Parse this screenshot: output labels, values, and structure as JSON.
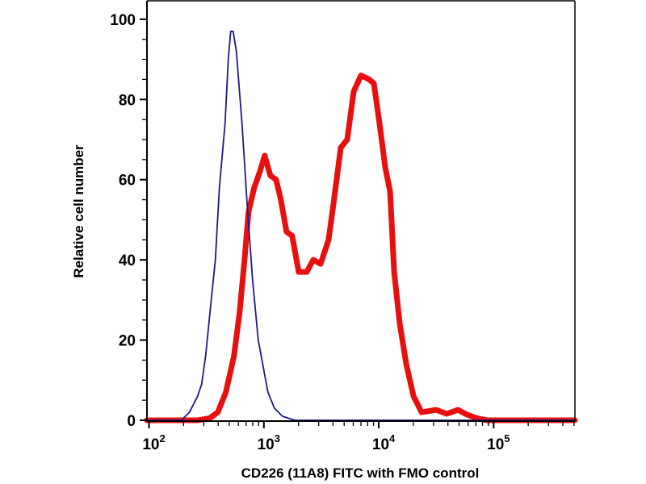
{
  "chart_data": {
    "type": "line",
    "title": "",
    "xlabel": "CD226 (11A8) FITC with FMO control",
    "ylabel": "Relative cell number",
    "xscale": "log",
    "xlim": [
      96,
      510000
    ],
    "ylim": [
      0,
      104.6
    ],
    "grid": false,
    "x_ticks": [
      {
        "value": 100,
        "base": "10",
        "exp": "2"
      },
      {
        "value": 1000,
        "base": "10",
        "exp": "3"
      },
      {
        "value": 10000,
        "base": "10",
        "exp": "4"
      },
      {
        "value": 100000,
        "base": "10",
        "exp": "5"
      }
    ],
    "y_ticks": [
      {
        "value": 0,
        "label": "0"
      },
      {
        "value": 20,
        "label": "20"
      },
      {
        "value": 40,
        "label": "40"
      },
      {
        "value": 60,
        "label": "60"
      },
      {
        "value": 80,
        "label": "80"
      },
      {
        "value": 100,
        "label": "100"
      }
    ],
    "series": [
      {
        "name": "FMO control",
        "color": "#1a1a8c",
        "x": [
          96,
          191,
          225,
          265,
          287,
          311,
          348,
          378,
          410,
          459,
          490,
          514,
          540,
          576,
          645,
          711,
          797,
          893,
          1084,
          1236,
          1452,
          1854,
          510000
        ],
        "y": [
          0,
          0,
          2,
          6,
          9,
          16,
          30,
          40,
          58,
          74,
          90,
          97,
          97,
          92,
          74,
          55,
          35,
          20,
          7,
          3,
          1,
          0,
          0
        ]
      },
      {
        "name": "CD226 (11A8) FITC",
        "color": "#e8100e",
        "x": [
          96,
          265,
          337,
          397,
          467,
          549,
          615,
          678,
          735,
          823,
          922,
          1016,
          1138,
          1276,
          1406,
          1574,
          1763,
          2009,
          2361,
          2690,
          3113,
          3657,
          4033,
          4670,
          5312,
          6049,
          7000,
          8228,
          9070,
          10160,
          11380,
          12550,
          13610,
          15250,
          17350,
          20080,
          23590,
          31620,
          39080,
          48980,
          57640,
          71120,
          87880,
          510000
        ],
        "y": [
          0,
          0,
          0.5,
          2,
          7,
          16,
          27,
          40,
          52,
          58,
          62,
          66,
          61,
          60,
          55,
          47,
          46,
          37,
          37,
          40,
          39,
          45,
          54,
          68,
          70,
          82,
          86,
          85,
          84,
          74,
          63,
          57,
          37,
          24,
          14,
          6,
          2,
          2.6,
          1.6,
          2.6,
          1.5,
          0.5,
          0,
          0
        ]
      }
    ]
  }
}
